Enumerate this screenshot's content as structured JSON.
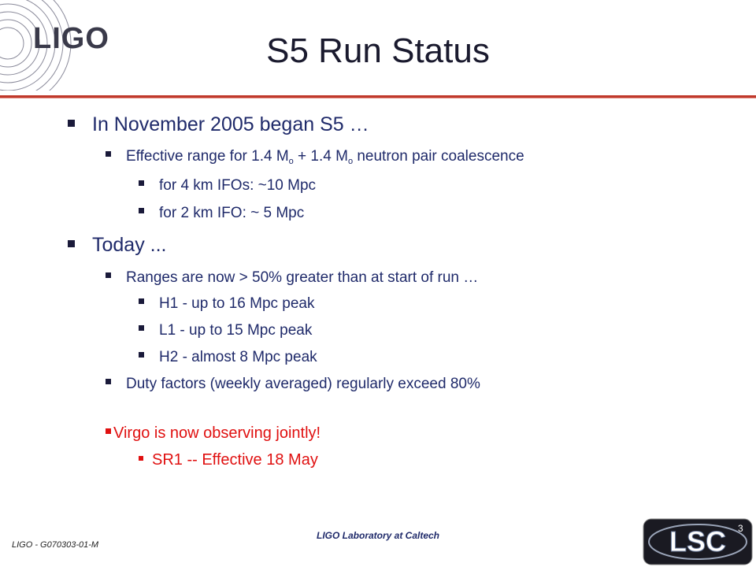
{
  "slide": {
    "title": "S5 Run Status",
    "logo_text": "LIGO",
    "bullets": [
      {
        "text": "In November 2005 began S5 …"
      },
      {
        "pre": "Effective range for 1.4 M",
        "sub1": "o",
        "mid": " + 1.4 M",
        "sub2": "o",
        "post": " neutron pair coalescence"
      },
      {
        "text": "for 4 km IFOs: ~10 Mpc"
      },
      {
        "text": "for 2 km IFO: ~ 5 Mpc"
      },
      {
        "text": "Today ..."
      },
      {
        "text": "Ranges are now > 50% greater than at start of run …"
      },
      {
        "text": "H1 - up to 16 Mpc peak"
      },
      {
        "text": "L1 - up to 15 Mpc peak"
      },
      {
        "text": "H2 - almost 8 Mpc peak"
      },
      {
        "text": "Duty factors (weekly averaged) regularly exceed 80%"
      },
      {
        "text": "Virgo is now observing jointly!"
      },
      {
        "text": "SR1 -- Effective 18 May"
      }
    ],
    "footer_left": "LIGO - G070303-01-M",
    "footer_center": "LIGO Laboratory at Caltech",
    "page_number": "3",
    "lsc_logo_text": "LSC"
  },
  "colors": {
    "title": "#1a1a2e",
    "body_text": "#1f2a6a",
    "highlight": "#e01010",
    "rule": "#c0392b"
  }
}
